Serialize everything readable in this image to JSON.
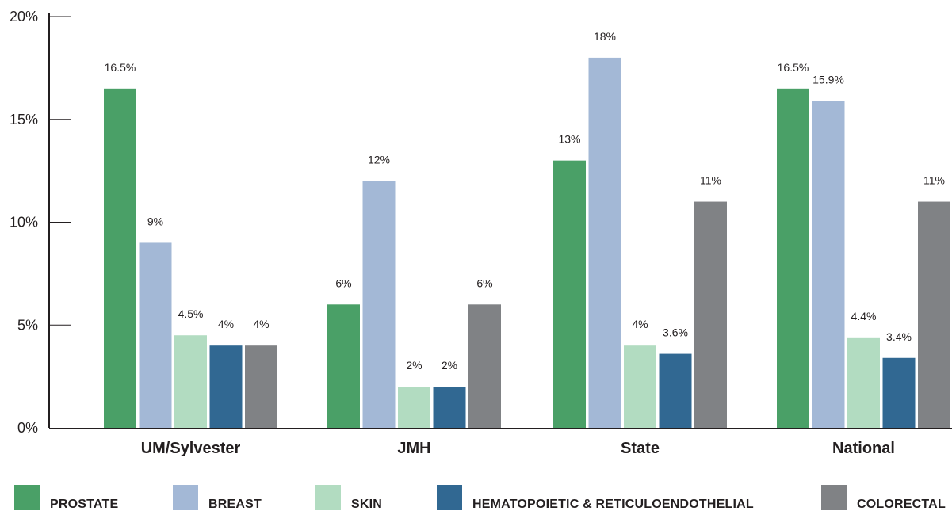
{
  "chart_data": {
    "type": "bar",
    "categories": [
      "UM/Sylvester",
      "JMH",
      "State",
      "National"
    ],
    "series": [
      {
        "name": "PROSTATE",
        "color": "#4aa067",
        "values": [
          16.5,
          6,
          13,
          16.5
        ],
        "labels": [
          "16.5%",
          "6%",
          "13%",
          "16.5%"
        ]
      },
      {
        "name": "BREAST",
        "color": "#a3b8d6",
        "values": [
          9,
          12,
          18,
          15.9
        ],
        "labels": [
          "9%",
          "12%",
          "18%",
          "15.9%"
        ]
      },
      {
        "name": "SKIN",
        "color": "#b2dcc1",
        "values": [
          4.5,
          2,
          4,
          4.4
        ],
        "labels": [
          "4.5%",
          "2%",
          "4%",
          "4.4%"
        ]
      },
      {
        "name": "HEMATOPOIETIC & RETICULOENDOTHELIAL",
        "color": "#316892",
        "values": [
          4,
          2,
          3.6,
          3.4
        ],
        "labels": [
          "4%",
          "2%",
          "3.6%",
          "3.4%"
        ]
      },
      {
        "name": "COLORECTAL",
        "color": "#808285",
        "values": [
          4,
          6,
          11,
          11
        ],
        "labels": [
          "4%",
          "6%",
          "11%",
          "11%"
        ]
      }
    ],
    "ytick_labels": [
      "0%",
      "5%",
      "10%",
      "15%",
      "20%"
    ],
    "ylim": [
      0,
      20
    ],
    "grid": false,
    "legend_position": "bottom"
  }
}
